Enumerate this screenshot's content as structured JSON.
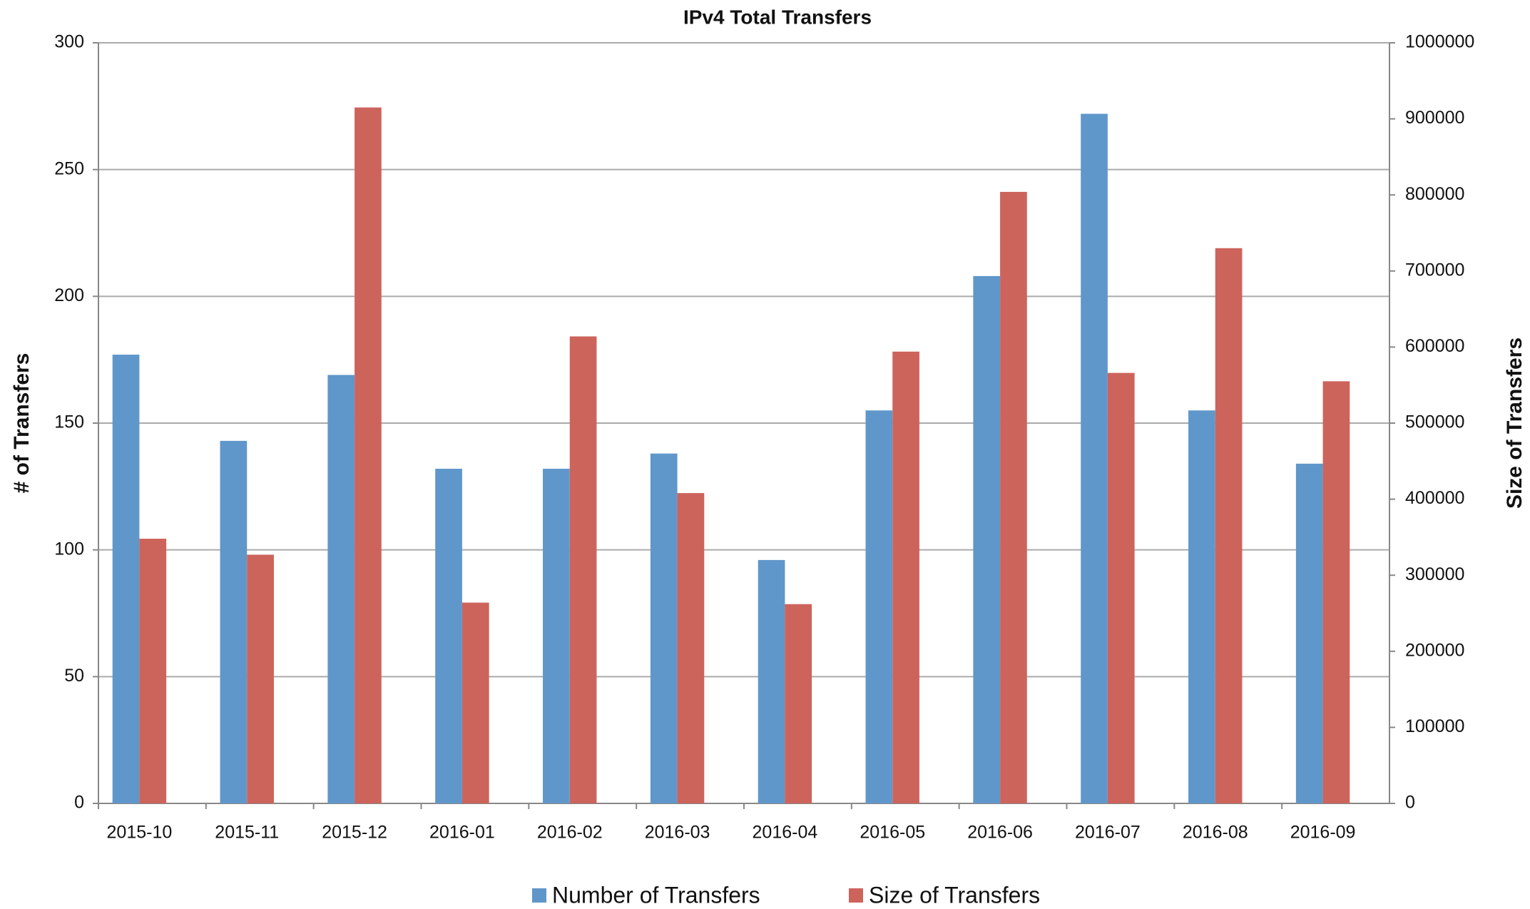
{
  "chart_data": {
    "type": "bar",
    "title": "IPv4 Total Transfers",
    "ylabel": "# of Transfers",
    "y2label": "Size of Transfers",
    "categories": [
      "2015-10",
      "2015-11",
      "2015-12",
      "2016-01",
      "2016-02",
      "2016-03",
      "2016-04",
      "2016-05",
      "2016-06",
      "2016-07",
      "2016-08",
      "2016-09"
    ],
    "series": [
      {
        "name": "Number of Transfers",
        "color": "#6097ca",
        "values": [
          177,
          143,
          169,
          132,
          132,
          138,
          96,
          155,
          208,
          272,
          155,
          134
        ]
      },
      {
        "name": "Size of Transfers",
        "color": "#cd645c",
        "axis": "y2",
        "values": [
          348000,
          327000,
          915000,
          264000,
          614000,
          408000,
          262000,
          594000,
          804000,
          566000,
          730000,
          555000
        ]
      }
    ],
    "ylim": [
      0,
      300
    ],
    "yticks": [
      0,
      50,
      100,
      150,
      200,
      250,
      300
    ],
    "y2lim": [
      0,
      1000000
    ],
    "y2ticks": [
      0,
      100000,
      200000,
      300000,
      400000,
      500000,
      600000,
      700000,
      800000,
      900000,
      1000000
    ],
    "grid": true,
    "legend": "bottom"
  }
}
